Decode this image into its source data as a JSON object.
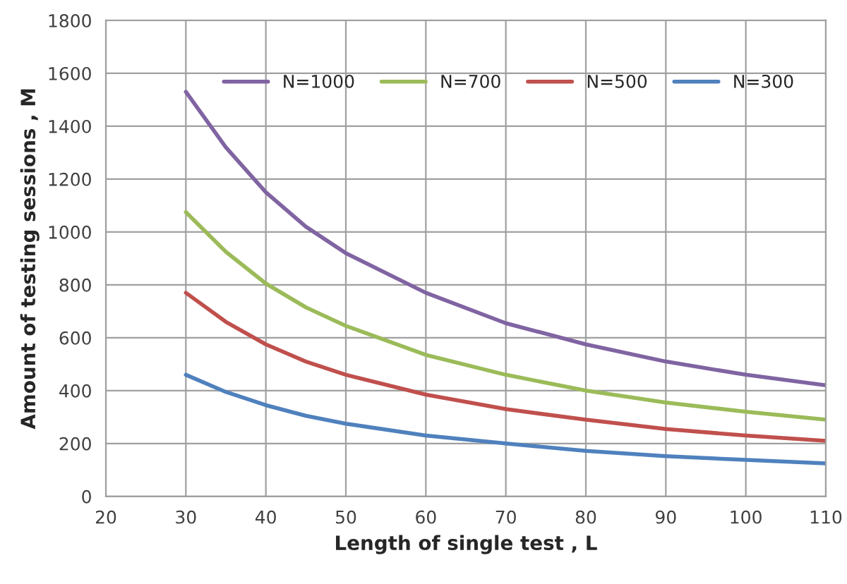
{
  "chart_data": {
    "type": "line",
    "xlabel": "Length of single test , L",
    "ylabel": "Amount of testing sessions , M",
    "x": [
      30,
      35,
      40,
      45,
      50,
      60,
      70,
      80,
      90,
      100,
      110
    ],
    "series": [
      {
        "name": "N=1000",
        "color": "#8064a2",
        "values": [
          1530,
          1320,
          1150,
          1020,
          920,
          770,
          655,
          575,
          510,
          460,
          420
        ]
      },
      {
        "name": "N=700",
        "color": "#9bbb59",
        "values": [
          1075,
          925,
          805,
          715,
          645,
          535,
          460,
          400,
          355,
          320,
          290
        ]
      },
      {
        "name": "N=500",
        "color": "#c0504d",
        "values": [
          770,
          660,
          575,
          510,
          460,
          385,
          330,
          290,
          255,
          230,
          210
        ]
      },
      {
        "name": "N=300",
        "color": "#4f81bd",
        "values": [
          460,
          395,
          345,
          305,
          275,
          230,
          200,
          172,
          152,
          138,
          125
        ]
      }
    ],
    "xlim": [
      20,
      110
    ],
    "xticks": [
      20,
      30,
      40,
      50,
      60,
      70,
      80,
      90,
      100,
      110
    ],
    "ylim": [
      0,
      1800
    ],
    "yticks": [
      0,
      200,
      400,
      600,
      800,
      1000,
      1200,
      1400,
      1600,
      1800
    ],
    "grid": true,
    "legend": "top",
    "marker": "none",
    "line_style": "solid"
  }
}
